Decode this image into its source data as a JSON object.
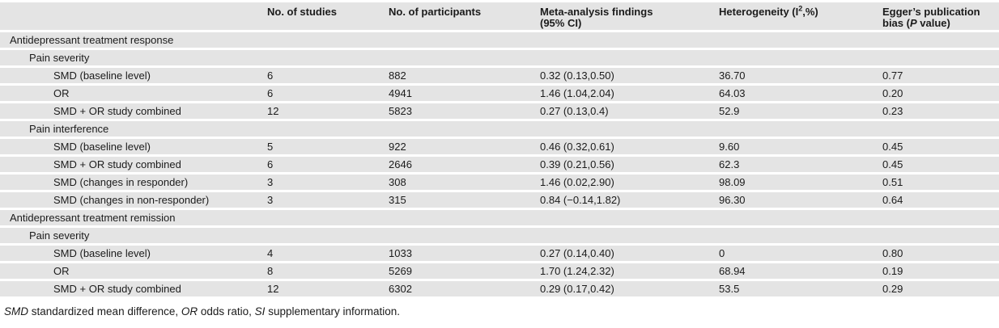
{
  "table": {
    "columns": {
      "row_label_header": "",
      "studies": "No. of studies",
      "participants": "No. of participants",
      "findings_line1": "Meta-analysis findings",
      "findings_line2": "(95% CI)",
      "het_pre": "Heterogeneity (I",
      "het_sup": "2",
      "het_post": ",%)",
      "egger_line1": "Egger’s publication",
      "egger_line2_pre": "bias (",
      "egger_line2_italic": "P",
      "egger_line2_post": " value)"
    },
    "rows": [
      {
        "label": "Antidepressant treatment response",
        "indent": 0,
        "type": "section",
        "studies": "",
        "participants": "",
        "findings": "",
        "heterogeneity": "",
        "egger": ""
      },
      {
        "label": "Pain severity",
        "indent": 1,
        "type": "section",
        "studies": "",
        "participants": "",
        "findings": "",
        "heterogeneity": "",
        "egger": ""
      },
      {
        "label": "SMD (baseline level)",
        "indent": 2,
        "type": "data",
        "studies": "6",
        "participants": "882",
        "findings": "0.32 (0.13,0.50)",
        "heterogeneity": "36.70",
        "egger": "0.77"
      },
      {
        "label": "OR",
        "indent": 2,
        "type": "data",
        "studies": "6",
        "participants": "4941",
        "findings": "1.46 (1.04,2.04)",
        "heterogeneity": "64.03",
        "egger": "0.20"
      },
      {
        "label": "SMD + OR study combined",
        "indent": 2,
        "type": "data",
        "studies": "12",
        "participants": "5823",
        "findings": "0.27 (0.13,0.4)",
        "heterogeneity": "52.9",
        "egger": "0.23"
      },
      {
        "label": "Pain interference",
        "indent": 1,
        "type": "section",
        "studies": "",
        "participants": "",
        "findings": "",
        "heterogeneity": "",
        "egger": ""
      },
      {
        "label": "SMD (baseline level)",
        "indent": 2,
        "type": "data",
        "studies": "5",
        "participants": "922",
        "findings": "0.46 (0.32,0.61)",
        "heterogeneity": "9.60",
        "egger": "0.45"
      },
      {
        "label": "SMD + OR study combined",
        "indent": 2,
        "type": "data",
        "studies": "6",
        "participants": "2646",
        "findings": "0.39 (0.21,0.56)",
        "heterogeneity": "62.3",
        "egger": "0.45"
      },
      {
        "label": "SMD (changes in responder)",
        "indent": 2,
        "type": "data",
        "studies": "3",
        "participants": "308",
        "findings": "1.46 (0.02,2.90)",
        "heterogeneity": "98.09",
        "egger": "0.51"
      },
      {
        "label": "SMD (changes in non-responder)",
        "indent": 2,
        "type": "data",
        "studies": "3",
        "participants": "315",
        "findings": "0.84 (−0.14,1.82)",
        "heterogeneity": "96.30",
        "egger": "0.64"
      },
      {
        "label": "Antidepressant treatment remission",
        "indent": 0,
        "type": "section",
        "studies": "",
        "participants": "",
        "findings": "",
        "heterogeneity": "",
        "egger": ""
      },
      {
        "label": "Pain severity",
        "indent": 1,
        "type": "section",
        "studies": "",
        "participants": "",
        "findings": "",
        "heterogeneity": "",
        "egger": ""
      },
      {
        "label": "SMD (baseline level)",
        "indent": 2,
        "type": "data",
        "studies": "4",
        "participants": "1033",
        "findings": "0.27 (0.14,0.40)",
        "heterogeneity": "0",
        "egger": "0.80"
      },
      {
        "label": "OR",
        "indent": 2,
        "type": "data",
        "studies": "8",
        "participants": "5269",
        "findings": "1.70 (1.24,2.32)",
        "heterogeneity": "68.94",
        "egger": "0.19"
      },
      {
        "label": "SMD + OR study combined",
        "indent": 2,
        "type": "data",
        "studies": "12",
        "participants": "6302",
        "findings": "0.29 (0.17,0.42)",
        "heterogeneity": "53.5",
        "egger": "0.29"
      }
    ]
  },
  "footnote": {
    "parts": [
      "SMD",
      " standardized mean difference, ",
      "OR",
      " odds ratio, ",
      "SI",
      " supplementary information."
    ]
  },
  "colors": {
    "row_background": "#e4e4e4",
    "text": "#1b1b1b",
    "page_background": "#ffffff"
  }
}
